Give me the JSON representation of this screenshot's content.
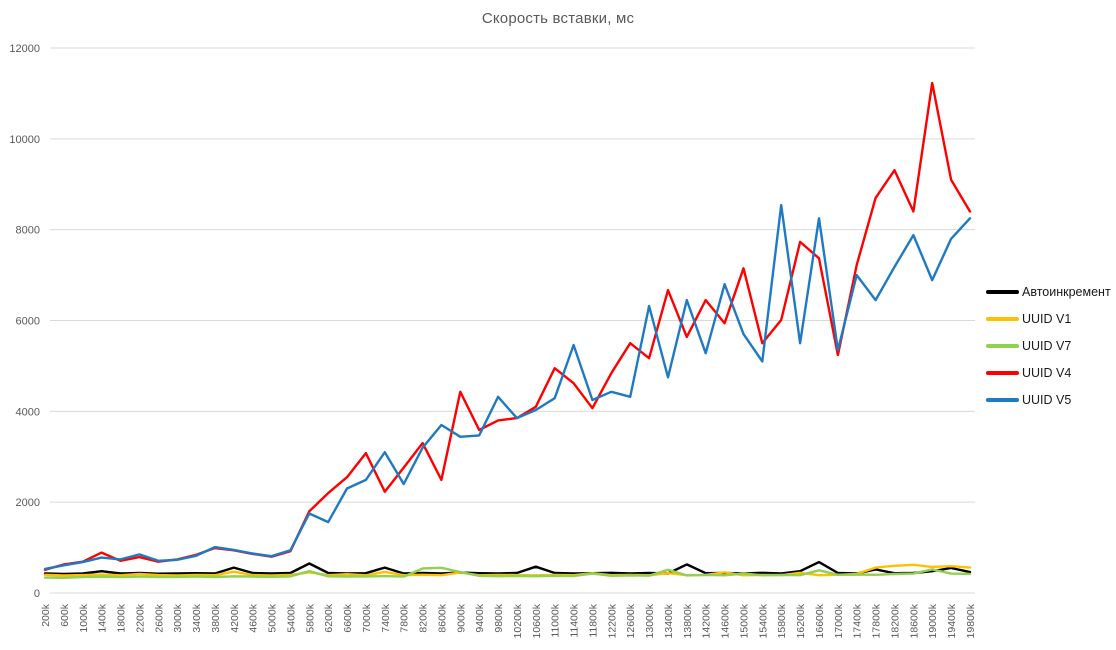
{
  "title": "Скорость вставки, мс",
  "axes": {
    "y_ticks": [
      0,
      2000,
      4000,
      6000,
      8000,
      10000,
      12000
    ],
    "y_tick_color": "#595959",
    "x_tick_color": "#595959",
    "gridline_color": "#d9d9d9"
  },
  "chart_data": {
    "type": "line",
    "title": "Скорость вставки, мс",
    "xlabel": "",
    "ylabel": "",
    "ylim": [
      0,
      12000
    ],
    "ytick_step": 2000,
    "grid": true,
    "legend_position": "right",
    "x_label_rotation": -90,
    "categories": [
      "200k",
      "600k",
      "1000k",
      "1400k",
      "1800k",
      "2200k",
      "2600k",
      "3000k",
      "3400k",
      "3800k",
      "4200k",
      "4600k",
      "5000k",
      "5400k",
      "5800k",
      "6200k",
      "6600k",
      "7000k",
      "7400k",
      "7800k",
      "8200k",
      "8600k",
      "9000k",
      "9400k",
      "9800k",
      "10200k",
      "10600k",
      "11000k",
      "11400k",
      "11800k",
      "12200k",
      "12600k",
      "13000k",
      "13400k",
      "13800k",
      "14200k",
      "14600k",
      "15000k",
      "15400k",
      "15800k",
      "16200k",
      "16600k",
      "17000k",
      "17400k",
      "17800k",
      "18200k",
      "18600k",
      "19000k",
      "19400k",
      "19800k"
    ],
    "series": [
      {
        "name": "Автоинкремент",
        "color": "#000000",
        "values": [
          430,
          420,
          430,
          480,
          430,
          440,
          425,
          430,
          435,
          430,
          560,
          440,
          430,
          440,
          650,
          440,
          430,
          435,
          560,
          430,
          440,
          430,
          450,
          435,
          430,
          440,
          580,
          440,
          430,
          435,
          445,
          430,
          440,
          430,
          630,
          435,
          440,
          430,
          445,
          430,
          480,
          680,
          440,
          430,
          520,
          435,
          440,
          480,
          550,
          460
        ]
      },
      {
        "name": "UUID V1",
        "color": "#FFC000",
        "values": [
          400,
          385,
          395,
          405,
          390,
          420,
          395,
          388,
          398,
          392,
          470,
          395,
          388,
          398,
          455,
          392,
          415,
          390,
          465,
          392,
          400,
          392,
          450,
          390,
          398,
          394,
          390,
          398,
          392,
          435,
          392,
          398,
          390,
          435,
          392,
          398,
          455,
          390,
          398,
          392,
          445,
          392,
          400,
          420,
          560,
          600,
          620,
          575,
          590,
          560
        ]
      },
      {
        "name": "UUID V7",
        "color": "#92D050",
        "values": [
          340,
          335,
          350,
          358,
          350,
          360,
          352,
          355,
          360,
          352,
          368,
          362,
          356,
          365,
          480,
          368,
          360,
          365,
          372,
          362,
          540,
          555,
          460,
          378,
          370,
          374,
          370,
          378,
          372,
          430,
          378,
          388,
          380,
          510,
          388,
          398,
          390,
          430,
          390,
          398,
          392,
          500,
          400,
          408,
          400,
          418,
          428,
          520,
          428,
          420
        ]
      },
      {
        "name": "UUID V4",
        "color": "#FF0000",
        "values": [
          510,
          630,
          690,
          890,
          710,
          790,
          690,
          740,
          840,
          990,
          940,
          860,
          800,
          920,
          1800,
          2200,
          2550,
          3080,
          2230,
          2760,
          3300,
          2490,
          4430,
          3590,
          3800,
          3850,
          4100,
          4950,
          4620,
          4070,
          4840,
          5500,
          5170,
          6670,
          5640,
          6450,
          5940,
          7150,
          5500,
          6010,
          7730,
          7370,
          5240,
          7220,
          8700,
          9310,
          8400,
          11230,
          9100,
          8400
        ]
      },
      {
        "name": "UUID V5",
        "color": "#1F7AC4",
        "values": [
          530,
          610,
          680,
          780,
          740,
          850,
          710,
          730,
          820,
          1010,
          950,
          870,
          810,
          940,
          1750,
          1560,
          2300,
          2490,
          3100,
          2400,
          3200,
          3700,
          3440,
          3470,
          4320,
          3850,
          4030,
          4290,
          5460,
          4250,
          4430,
          4320,
          6320,
          4750,
          6450,
          5280,
          6800,
          5700,
          5100,
          8540,
          5500,
          8250,
          5350,
          7000,
          6450,
          7180,
          7880,
          6890,
          7800,
          8250
        ]
      }
    ]
  }
}
